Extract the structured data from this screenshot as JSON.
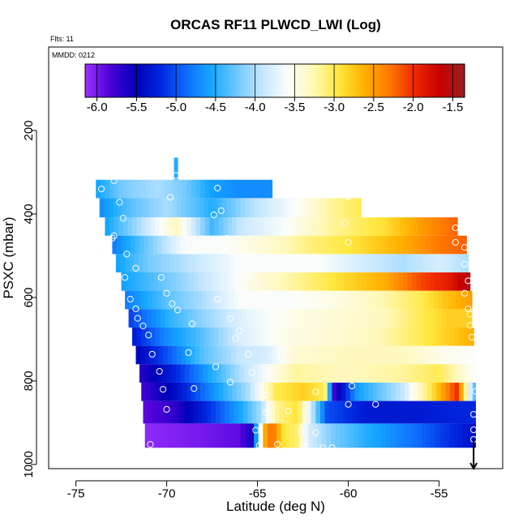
{
  "chart_data": {
    "type": "heatmap",
    "title": "ORCAS RF11 PLWCD_LWI (Log)",
    "info_lines": [
      "Flts: 11",
      "MMDD: 0212"
    ],
    "xlabel": "Latitude (deg N)",
    "ylabel": "PSXC (mbar)",
    "xlim": [
      -76.5,
      -51.5
    ],
    "ylim": [
      1010,
      0
    ],
    "x_ticks": [
      -75,
      -70,
      -65,
      -60,
      -55
    ],
    "x_tick_labels": [
      "-75",
      "-70",
      "-65",
      "-60",
      "-55"
    ],
    "y_ticks": [
      200,
      400,
      600,
      800,
      1000
    ],
    "y_tick_labels": [
      "200",
      "400",
      "600",
      "800",
      "1000"
    ],
    "colorbar": {
      "range": [
        -6.15,
        -1.35
      ],
      "ticks": [
        -6.0,
        -5.5,
        -5.0,
        -4.5,
        -4.0,
        -3.5,
        -3.0,
        -2.5,
        -2.0,
        -1.5
      ],
      "tick_labels": [
        "-6.0",
        "-5.5",
        "-5.0",
        "-4.5",
        "-4.0",
        "-3.5",
        "-3.0",
        "-2.5",
        "-2.0",
        "-1.5"
      ],
      "colors": [
        "#9b30ff",
        "#4b00d8",
        "#0000b8",
        "#0028e0",
        "#0f6cff",
        "#15a8ff",
        "#6ec8ff",
        "#c4e6ff",
        "#fbfdfb",
        "#fff8b8",
        "#ffe840",
        "#ffb300",
        "#ff7a00",
        "#ef2a00",
        "#c80000",
        "#9b1f1f"
      ]
    },
    "rows": [
      {
        "p_top": 318,
        "p_bot": 362,
        "lat_start": -73.9,
        "lat_end": -64.2,
        "values": [
          [
            -73.9,
            -4.6
          ],
          [
            -72.5,
            -4.2
          ],
          [
            -70.5,
            -4.0
          ],
          [
            -69.0,
            -4.2
          ],
          [
            -67.5,
            -4.6
          ],
          [
            -66.0,
            -4.7
          ],
          [
            -64.2,
            -4.7
          ]
        ]
      },
      {
        "p_top": 362,
        "p_bot": 408,
        "lat_start": -73.7,
        "lat_end": -59.3,
        "values": [
          [
            -73.7,
            -4.7
          ],
          [
            -72.0,
            -4.3
          ],
          [
            -70.0,
            -4.0
          ],
          [
            -67.5,
            -4.5
          ],
          [
            -65.5,
            -4.0
          ],
          [
            -63.0,
            -3.6
          ],
          [
            -61.0,
            -3.2
          ],
          [
            -59.3,
            -3.0
          ]
        ]
      },
      {
        "p_top": 408,
        "p_bot": 452,
        "lat_start": -73.4,
        "lat_end": -54.0,
        "values": [
          [
            -73.4,
            -4.6
          ],
          [
            -71.5,
            -4.0
          ],
          [
            -69.5,
            -3.3
          ],
          [
            -67.5,
            -4.4
          ],
          [
            -66.0,
            -3.9
          ],
          [
            -63.5,
            -3.6
          ],
          [
            -61.0,
            -3.2
          ],
          [
            -58.0,
            -2.9
          ],
          [
            -56.0,
            -2.5
          ],
          [
            -54.0,
            -2.2
          ]
        ]
      },
      {
        "p_top": 452,
        "p_bot": 496,
        "lat_start": -73.0,
        "lat_end": -53.5,
        "values": [
          [
            -73.0,
            -4.8
          ],
          [
            -71.0,
            -4.2
          ],
          [
            -69.0,
            -3.6
          ],
          [
            -67.0,
            -3.6
          ],
          [
            -64.5,
            -3.4
          ],
          [
            -62.0,
            -3.1
          ],
          [
            -59.5,
            -2.9
          ],
          [
            -57.0,
            -2.6
          ],
          [
            -55.0,
            -2.3
          ],
          [
            -53.5,
            -2.2
          ]
        ]
      },
      {
        "p_top": 496,
        "p_bot": 540,
        "lat_start": -72.8,
        "lat_end": -53.4,
        "values": [
          [
            -72.8,
            -4.6
          ],
          [
            -71.0,
            -4.2
          ],
          [
            -68.5,
            -3.9
          ],
          [
            -66.0,
            -3.6
          ],
          [
            -63.5,
            -3.6
          ],
          [
            -61.5,
            -3.6
          ],
          [
            -59.5,
            -3.8
          ],
          [
            -57.0,
            -4.0
          ],
          [
            -55.0,
            -3.8
          ],
          [
            -53.4,
            -4.0
          ]
        ]
      },
      {
        "p_top": 540,
        "p_bot": 584,
        "lat_start": -72.5,
        "lat_end": -53.3,
        "values": [
          [
            -72.5,
            -4.6
          ],
          [
            -70.5,
            -4.3
          ],
          [
            -68.0,
            -3.9
          ],
          [
            -65.5,
            -3.5
          ],
          [
            -63.0,
            -3.2
          ],
          [
            -60.5,
            -2.9
          ],
          [
            -58.0,
            -2.6
          ],
          [
            -56.0,
            -2.1
          ],
          [
            -54.5,
            -1.9
          ],
          [
            -53.3,
            -1.5
          ]
        ]
      },
      {
        "p_top": 584,
        "p_bot": 628,
        "lat_start": -72.3,
        "lat_end": -53.2,
        "values": [
          [
            -72.3,
            -4.8
          ],
          [
            -70.0,
            -4.3
          ],
          [
            -68.0,
            -4.0
          ],
          [
            -66.0,
            -3.6
          ],
          [
            -63.5,
            -3.6
          ],
          [
            -61.0,
            -3.5
          ],
          [
            -58.5,
            -3.3
          ],
          [
            -56.0,
            -3.0
          ],
          [
            -54.5,
            -2.7
          ],
          [
            -53.2,
            -2.5
          ]
        ]
      },
      {
        "p_top": 628,
        "p_bot": 672,
        "lat_start": -72.1,
        "lat_end": -53.2,
        "values": [
          [
            -72.1,
            -5.1
          ],
          [
            -70.0,
            -4.5
          ],
          [
            -68.0,
            -4.1
          ],
          [
            -65.5,
            -3.7
          ],
          [
            -63.0,
            -3.5
          ],
          [
            -60.5,
            -3.4
          ],
          [
            -58.0,
            -3.3
          ],
          [
            -56.0,
            -3.0
          ],
          [
            -54.5,
            -2.8
          ],
          [
            -53.2,
            -2.8
          ]
        ]
      },
      {
        "p_top": 672,
        "p_bot": 716,
        "lat_start": -71.9,
        "lat_end": -53.1,
        "values": [
          [
            -71.9,
            -5.3
          ],
          [
            -70.0,
            -4.7
          ],
          [
            -68.0,
            -4.3
          ],
          [
            -66.0,
            -3.8
          ],
          [
            -63.5,
            -3.5
          ],
          [
            -61.0,
            -3.4
          ],
          [
            -58.5,
            -3.3
          ],
          [
            -56.0,
            -3.0
          ],
          [
            -54.5,
            -2.8
          ],
          [
            -53.1,
            -2.6
          ]
        ]
      },
      {
        "p_top": 716,
        "p_bot": 760,
        "lat_start": -71.7,
        "lat_end": -53.0,
        "values": [
          [
            -71.7,
            -5.5
          ],
          [
            -70.0,
            -5.0
          ],
          [
            -68.0,
            -4.3
          ],
          [
            -66.0,
            -3.9
          ],
          [
            -64.5,
            -3.8
          ],
          [
            -63.0,
            -3.4
          ],
          [
            -60.0,
            -3.3
          ],
          [
            -57.0,
            -3.3
          ],
          [
            -55.0,
            -3.5
          ],
          [
            -53.0,
            -3.6
          ]
        ]
      },
      {
        "p_top": 760,
        "p_bot": 804,
        "lat_start": -71.5,
        "lat_end": -53.0,
        "values": [
          [
            -71.5,
            -5.7
          ],
          [
            -69.5,
            -5.2
          ],
          [
            -67.5,
            -4.5
          ],
          [
            -66.0,
            -4.0
          ],
          [
            -64.5,
            -3.6
          ],
          [
            -63.0,
            -3.2
          ],
          [
            -60.0,
            -3.3
          ],
          [
            -57.0,
            -3.2
          ],
          [
            -55.0,
            -3.0
          ],
          [
            -53.0,
            -3.6
          ]
        ]
      },
      {
        "p_top": 804,
        "p_bot": 848,
        "lat_start": -71.4,
        "lat_end": -53.0,
        "values": [
          [
            -71.4,
            -5.8
          ],
          [
            -69.5,
            -5.4
          ],
          [
            -67.5,
            -4.7
          ],
          [
            -65.5,
            -4.0
          ],
          [
            -64.0,
            -3.0
          ],
          [
            -62.5,
            -2.8
          ],
          [
            -61.3,
            -3.0
          ],
          [
            -60.8,
            -5.8
          ],
          [
            -59.5,
            -4.6
          ],
          [
            -57.0,
            -3.9
          ],
          [
            -55.5,
            -3.0
          ],
          [
            -54.0,
            -2.0
          ],
          [
            -53.0,
            -4.5
          ]
        ]
      },
      {
        "p_top": 848,
        "p_bot": 902,
        "lat_start": -71.3,
        "lat_end": -53.0,
        "values": [
          [
            -71.3,
            -5.9
          ],
          [
            -69.5,
            -5.7
          ],
          [
            -67.5,
            -5.1
          ],
          [
            -65.8,
            -4.5
          ],
          [
            -64.8,
            -4.0
          ],
          [
            -64.0,
            -3.2
          ],
          [
            -62.8,
            -2.9
          ],
          [
            -62.0,
            -3.9
          ],
          [
            -61.2,
            -5.0
          ],
          [
            -59.0,
            -5.3
          ],
          [
            -56.0,
            -5.3
          ],
          [
            -53.0,
            -5.2
          ]
        ]
      },
      {
        "p_top": 902,
        "p_bot": 960,
        "lat_start": -71.2,
        "lat_end": -53.0,
        "values": [
          [
            -71.2,
            -6.1
          ],
          [
            -68.0,
            -6.0
          ],
          [
            -66.0,
            -5.9
          ],
          [
            -65.3,
            -5.6
          ],
          [
            -64.6,
            -2.6
          ],
          [
            -64.2,
            -2.2
          ],
          [
            -63.6,
            -2.9
          ],
          [
            -62.8,
            -3.1
          ],
          [
            -62.2,
            -3.8
          ],
          [
            -61.5,
            -4.0
          ],
          [
            -60.8,
            -4.2
          ],
          [
            -59.0,
            -4.5
          ],
          [
            -56.0,
            -4.9
          ],
          [
            -53.0,
            -5.4
          ]
        ]
      },
      {
        "p_top": 265,
        "p_bot": 318,
        "lat_start": -69.6,
        "lat_end": -69.4,
        "values": [
          [
            -69.6,
            -4.5
          ],
          [
            -69.4,
            -4.5
          ]
        ]
      }
    ],
    "markers": [
      [
        -72.9,
        320
      ],
      [
        -69.5,
        308
      ],
      [
        -73.6,
        340
      ],
      [
        -67.2,
        338
      ],
      [
        -69.8,
        360
      ],
      [
        -72.6,
        372
      ],
      [
        -67.0,
        392
      ],
      [
        -60.0,
        358
      ],
      [
        -72.4,
        410
      ],
      [
        -67.4,
        402
      ],
      [
        -73.0,
        458
      ],
      [
        -69.8,
        446
      ],
      [
        -60.2,
        422
      ],
      [
        -66.7,
        458
      ],
      [
        -72.9,
        452
      ],
      [
        -54.1,
        433
      ],
      [
        -72.2,
        496
      ],
      [
        -60.0,
        468
      ],
      [
        -54.1,
        468
      ],
      [
        -53.6,
        480
      ],
      [
        -65.7,
        494
      ],
      [
        -71.7,
        530
      ],
      [
        -66.1,
        525
      ],
      [
        -53.6,
        520
      ],
      [
        -72.3,
        552
      ],
      [
        -70.3,
        552
      ],
      [
        -65.6,
        552
      ],
      [
        -53.4,
        560
      ],
      [
        -72.0,
        604
      ],
      [
        -70.0,
        590
      ],
      [
        -67.2,
        604
      ],
      [
        -53.6,
        590
      ],
      [
        -71.7,
        627
      ],
      [
        -69.7,
        615
      ],
      [
        -53.4,
        627
      ],
      [
        -71.6,
        650
      ],
      [
        -69.4,
        630
      ],
      [
        -66.5,
        651
      ],
      [
        -53.3,
        640
      ],
      [
        -71.3,
        668
      ],
      [
        -68.6,
        663
      ],
      [
        -66.0,
        680
      ],
      [
        -53.3,
        667
      ],
      [
        -71.0,
        690
      ],
      [
        -66.2,
        698
      ],
      [
        -53.2,
        695
      ],
      [
        -70.8,
        736
      ],
      [
        -68.8,
        732
      ],
      [
        -65.5,
        736
      ],
      [
        -53.1,
        738
      ],
      [
        -70.4,
        777
      ],
      [
        -67.3,
        766
      ],
      [
        -65.3,
        780
      ],
      [
        -53.1,
        752
      ],
      [
        -53.2,
        763
      ],
      [
        -53.1,
        783
      ],
      [
        -70.2,
        820
      ],
      [
        -68.5,
        818
      ],
      [
        -66.5,
        803
      ],
      [
        -64.5,
        834
      ],
      [
        -61.8,
        826
      ],
      [
        -59.8,
        812
      ],
      [
        -53.0,
        825
      ],
      [
        -70.0,
        868
      ],
      [
        -64.5,
        876
      ],
      [
        -63.3,
        872
      ],
      [
        -60.0,
        856
      ],
      [
        -58.5,
        856
      ],
      [
        -53.1,
        880
      ],
      [
        -65.1,
        918
      ],
      [
        -62.6,
        922
      ],
      [
        -61.8,
        924
      ],
      [
        -53.1,
        917
      ],
      [
        -70.9,
        952
      ],
      [
        -64.9,
        955
      ],
      [
        -63.9,
        952
      ],
      [
        -62.4,
        958
      ],
      [
        -61.4,
        960
      ],
      [
        -60.9,
        960
      ],
      [
        -53.1,
        940
      ]
    ],
    "arrow": {
      "lat": -53.1,
      "p_from": 940,
      "p_to": 1010
    }
  }
}
